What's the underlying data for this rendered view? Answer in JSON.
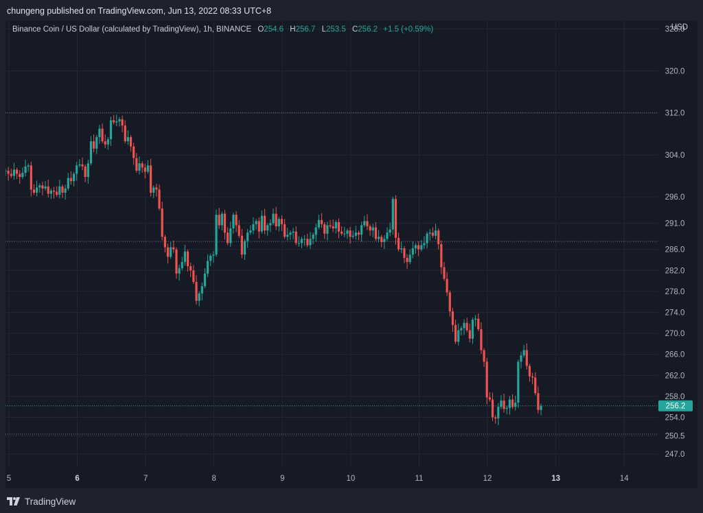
{
  "header": {
    "publisher_line": "chungeng published on TradingView.com, Jun 13, 2022 08:33 UTC+8"
  },
  "legend": {
    "symbol": "Binance Coin / US Dollar (calculated by TradingView), 1h, BINANCE",
    "o_label": "O",
    "o_value": "254.6",
    "h_label": "H",
    "h_value": "256.7",
    "l_label": "L",
    "l_value": "253.5",
    "c_label": "C",
    "c_value": "256.2",
    "change": "+1.5 (+0.59%)"
  },
  "currency": "USD",
  "footer": {
    "brand": "TradingView"
  },
  "colors": {
    "up": "#26a69a",
    "down": "#ef5350",
    "background": "#161a25",
    "grid": "#232735",
    "text": "#b2b5be"
  },
  "chart_data": {
    "type": "candlestick",
    "interval": "1h",
    "y_range": [
      244.4,
      329.6
    ],
    "x_range": [
      4.95,
      14.49
    ],
    "y_ticks": [
      "328.0",
      "320.0",
      "312.0",
      "304.0",
      "296.0",
      "291.0",
      "286.0",
      "282.0",
      "278.0",
      "274.0",
      "270.0",
      "266.0",
      "262.0",
      "258.0",
      "254.0",
      "250.5",
      "247.0"
    ],
    "x_ticks": [
      {
        "label": "5",
        "day": 5,
        "bold": false
      },
      {
        "label": "6",
        "day": 6,
        "bold": true
      },
      {
        "label": "7",
        "day": 7,
        "bold": false
      },
      {
        "label": "8",
        "day": 8,
        "bold": false
      },
      {
        "label": "9",
        "day": 9,
        "bold": false
      },
      {
        "label": "10",
        "day": 10,
        "bold": false
      },
      {
        "label": "11",
        "day": 11,
        "bold": false
      },
      {
        "label": "12",
        "day": 12,
        "bold": false
      },
      {
        "label": "13",
        "day": 13,
        "bold": true
      },
      {
        "label": "14",
        "day": 14,
        "bold": false
      }
    ],
    "last_price": "256.2",
    "reference_levels": [
      312.0,
      287.5,
      250.8
    ],
    "candles_start_day": 4.95,
    "candles_hourly_closes": [
      301.0,
      300.4,
      300.0,
      301.2,
      300.4,
      299.8,
      300.6,
      301.8,
      302.0,
      297.4,
      296.8,
      297.8,
      298.2,
      297.6,
      298.0,
      296.6,
      297.2,
      297.0,
      296.4,
      298.0,
      296.8,
      297.6,
      299.6,
      299.0,
      300.4,
      302.0,
      302.2,
      301.8,
      299.8,
      302.4,
      306.6,
      305.2,
      307.4,
      309.0,
      306.6,
      306.0,
      307.0,
      310.6,
      310.2,
      310.4,
      310.8,
      309.6,
      306.6,
      307.4,
      305.6,
      303.4,
      301.0,
      302.4,
      301.6,
      300.8,
      302.0,
      296.8,
      297.8,
      297.4,
      293.8,
      288.4,
      286.4,
      284.6,
      286.4,
      286.0,
      281.4,
      282.4,
      283.6,
      285.6,
      282.8,
      282.0,
      279.8,
      276.2,
      277.6,
      279.0,
      281.4,
      283.8,
      284.8,
      285.0,
      292.6,
      290.6,
      292.8,
      289.2,
      287.2,
      290.0,
      292.6,
      290.6,
      288.6,
      285.0,
      287.6,
      289.2,
      289.6,
      290.8,
      291.4,
      289.4,
      292.4,
      289.6,
      290.6,
      291.0,
      292.8,
      290.4,
      291.8,
      290.8,
      288.4,
      288.8,
      289.2,
      289.4,
      287.2,
      287.2,
      288.0,
      288.0,
      286.8,
      288.0,
      288.8,
      290.2,
      291.6,
      290.8,
      289.0,
      290.6,
      290.4,
      290.0,
      291.2,
      289.4,
      289.0,
      289.0,
      289.6,
      288.4,
      288.6,
      289.2,
      288.8,
      290.6,
      291.4,
      290.4,
      289.6,
      290.2,
      288.0,
      288.4,
      287.4,
      288.0,
      289.2,
      289.8,
      295.6,
      288.2,
      286.0,
      286.2,
      284.4,
      283.6,
      285.0,
      286.2,
      286.8,
      286.0,
      286.8,
      287.2,
      289.0,
      289.2,
      288.6,
      289.6,
      287.0,
      282.6,
      280.4,
      277.8,
      274.2,
      271.6,
      268.4,
      270.6,
      271.0,
      272.0,
      270.6,
      269.0,
      272.6,
      272.8,
      270.8,
      266.8,
      264.6,
      257.8,
      257.4,
      254.0,
      253.8,
      256.0,
      257.2,
      255.6,
      255.8,
      257.4,
      256.0,
      256.8,
      264.6,
      265.8,
      266.8,
      263.8,
      261.8,
      261.6,
      258.6,
      255.4,
      256.2
    ]
  }
}
